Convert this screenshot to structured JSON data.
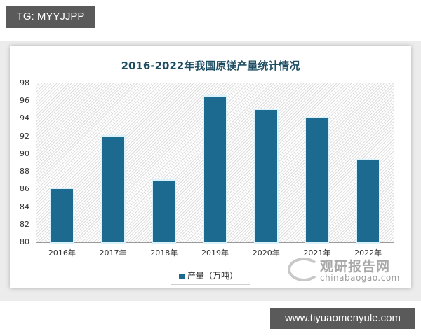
{
  "overlay": {
    "top_tag": "TG: MYYJJPP",
    "bottom_tag": "www.tiyuaomenyule.com"
  },
  "watermark": {
    "cn": "观研报告网",
    "en": "chinabaogao.com"
  },
  "legend": {
    "label": "产量（万吨）"
  },
  "colors": {
    "bar": "#1c6a8f",
    "title": "#1f4e63"
  },
  "chart_data": {
    "type": "bar",
    "title": "2016-2022年我国原镁产量统计情况",
    "xlabel": "",
    "ylabel": "",
    "categories": [
      "2016年",
      "2017年",
      "2018年",
      "2019年",
      "2020年",
      "2021年",
      "2022年"
    ],
    "series": [
      {
        "name": "产量（万吨）",
        "values": [
          86,
          92,
          87,
          96.5,
          95,
          94,
          89.3
        ]
      }
    ],
    "ylim": [
      80,
      98
    ],
    "yticks": [
      "98",
      "96",
      "94",
      "92",
      "90",
      "88",
      "86",
      "84",
      "82",
      "80"
    ],
    "grid": false,
    "legend_position": "bottom"
  }
}
